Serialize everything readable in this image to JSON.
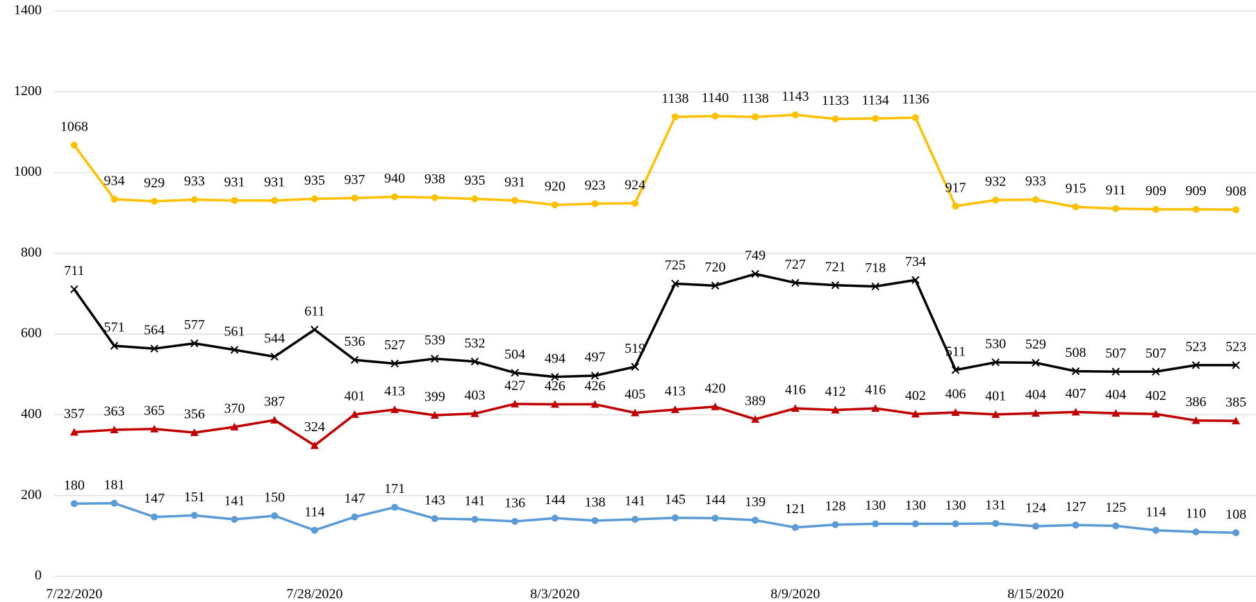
{
  "chart_data": {
    "type": "line",
    "categories": [
      "7/22/2020",
      null,
      null,
      null,
      null,
      null,
      "7/28/2020",
      null,
      null,
      null,
      null,
      null,
      "8/3/2020",
      null,
      null,
      null,
      null,
      null,
      "8/9/2020",
      null,
      null,
      null,
      null,
      null,
      "8/15/2020",
      null,
      null,
      null,
      null,
      null
    ],
    "ylim": [
      0,
      1400
    ],
    "yticks": [
      0,
      200,
      400,
      600,
      800,
      1000,
      1200,
      1400
    ],
    "grid": true,
    "series": [
      {
        "color": "#ffc000",
        "marker": "circle",
        "values": [
          1068,
          934,
          929,
          933,
          931,
          931,
          935,
          937,
          940,
          938,
          935,
          931,
          920,
          923,
          924,
          1138,
          1140,
          1138,
          1143,
          1133,
          1134,
          1136,
          917,
          932,
          933,
          915,
          911,
          909,
          909,
          908
        ]
      },
      {
        "color": "#000000",
        "marker": "x",
        "values": [
          711,
          571,
          564,
          577,
          561,
          544,
          611,
          536,
          527,
          539,
          532,
          504,
          494,
          497,
          519,
          725,
          720,
          749,
          727,
          721,
          718,
          734,
          511,
          530,
          529,
          508,
          507,
          507,
          523,
          523
        ]
      },
      {
        "color": "#c00000",
        "marker": "triangle",
        "values": [
          357,
          363,
          365,
          356,
          370,
          387,
          324,
          401,
          413,
          399,
          403,
          427,
          426,
          426,
          405,
          413,
          420,
          389,
          416,
          412,
          416,
          402,
          406,
          401,
          404,
          407,
          404,
          402,
          386,
          385
        ]
      },
      {
        "color": "#5b9bd5",
        "marker": "circle",
        "values": [
          180,
          181,
          147,
          151,
          141,
          150,
          114,
          147,
          171,
          143,
          141,
          136,
          144,
          138,
          141,
          145,
          144,
          139,
          121,
          128,
          130,
          130,
          130,
          131,
          124,
          127,
          125,
          114,
          110,
          108
        ]
      }
    ]
  }
}
